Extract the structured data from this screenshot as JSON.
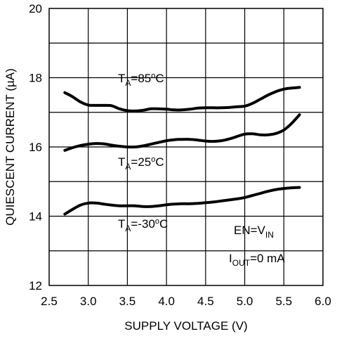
{
  "chart_data": {
    "type": "line",
    "title": "",
    "xlabel": "SUPPLY VOLTAGE (V)",
    "ylabel": "QUIESCENT CURRENT (µA)",
    "xlim": [
      2.5,
      6.0
    ],
    "ylim": [
      12,
      20
    ],
    "xticks": [
      2.5,
      3.0,
      3.5,
      4.0,
      4.5,
      5.0,
      5.5,
      6.0
    ],
    "xtick_labels": [
      "2.5",
      "3.0",
      "3.5",
      "4.0",
      "4.5",
      "5.0",
      "5.5",
      "6.0"
    ],
    "yticks": [
      12,
      14,
      16,
      18,
      20
    ],
    "ytick_labels": [
      "12",
      "14",
      "16",
      "18",
      "20"
    ],
    "grid": true,
    "legend": "none",
    "line_color": "#000000",
    "series": [
      {
        "label": {
          "main": "T",
          "sub": "A",
          "rest": "=85",
          "sup": "o",
          "unit": "C"
        },
        "x": [
          2.7,
          2.8,
          2.9,
          3.0,
          3.1,
          3.2,
          3.3,
          3.4,
          3.5,
          3.6,
          3.7,
          3.8,
          3.9,
          4.0,
          4.1,
          4.2,
          4.3,
          4.4,
          4.5,
          4.6,
          4.7,
          4.8,
          4.9,
          5.0,
          5.1,
          5.2,
          5.3,
          5.4,
          5.5,
          5.6,
          5.7
        ],
        "y": [
          17.57,
          17.45,
          17.3,
          17.21,
          17.2,
          17.2,
          17.19,
          17.1,
          17.05,
          17.04,
          17.06,
          17.1,
          17.1,
          17.09,
          17.07,
          17.07,
          17.09,
          17.12,
          17.13,
          17.13,
          17.13,
          17.14,
          17.16,
          17.18,
          17.26,
          17.38,
          17.5,
          17.6,
          17.67,
          17.7,
          17.72
        ]
      },
      {
        "label": {
          "main": "T",
          "sub": "A",
          "rest": "=25",
          "sup": "o",
          "unit": "C"
        },
        "x": [
          2.7,
          2.8,
          2.9,
          3.0,
          3.1,
          3.2,
          3.3,
          3.4,
          3.5,
          3.6,
          3.7,
          3.8,
          3.9,
          4.0,
          4.1,
          4.2,
          4.3,
          4.4,
          4.5,
          4.6,
          4.7,
          4.8,
          4.9,
          5.0,
          5.1,
          5.2,
          5.3,
          5.4,
          5.5,
          5.6,
          5.7
        ],
        "y": [
          15.9,
          15.98,
          16.04,
          16.08,
          16.1,
          16.09,
          16.05,
          16.02,
          16.0,
          16.0,
          16.03,
          16.08,
          16.13,
          16.18,
          16.21,
          16.22,
          16.22,
          16.2,
          16.17,
          16.16,
          16.18,
          16.23,
          16.3,
          16.37,
          16.38,
          16.35,
          16.35,
          16.39,
          16.49,
          16.68,
          16.93
        ]
      },
      {
        "label": {
          "main": "T",
          "sub": "A",
          "rest": "=-30",
          "sup": "o",
          "unit": "C"
        },
        "x": [
          2.7,
          2.8,
          2.9,
          3.0,
          3.1,
          3.2,
          3.3,
          3.4,
          3.5,
          3.6,
          3.7,
          3.8,
          3.9,
          4.0,
          4.1,
          4.2,
          4.3,
          4.4,
          4.5,
          4.6,
          4.7,
          4.8,
          4.9,
          5.0,
          5.1,
          5.2,
          5.3,
          5.4,
          5.5,
          5.6,
          5.7
        ],
        "y": [
          14.06,
          14.2,
          14.32,
          14.38,
          14.38,
          14.35,
          14.32,
          14.3,
          14.3,
          14.3,
          14.28,
          14.28,
          14.3,
          14.33,
          14.35,
          14.36,
          14.36,
          14.37,
          14.39,
          14.41,
          14.44,
          14.47,
          14.5,
          14.54,
          14.6,
          14.66,
          14.72,
          14.77,
          14.8,
          14.82,
          14.83
        ]
      }
    ],
    "annotations": [
      {
        "main": "EN=V",
        "sub": "IN",
        "rest": ""
      },
      {
        "main": "I",
        "sub": "OUT",
        "rest": "=0 mA"
      }
    ]
  }
}
